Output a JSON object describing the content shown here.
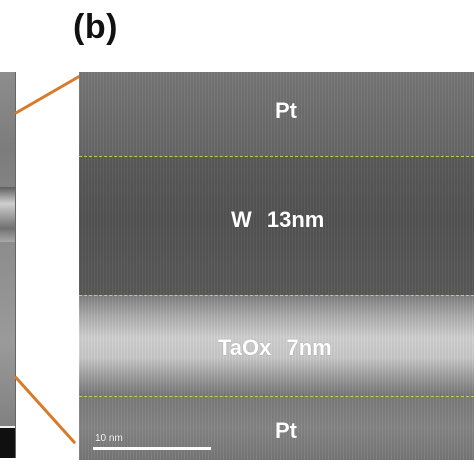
{
  "figure": {
    "panel_label": "(b)",
    "accent_color": "#d97a2b",
    "interface_line_color": "#d7d64b"
  },
  "micrograph": {
    "layers": {
      "top": "Pt",
      "middle_upper": "W  13nm",
      "middle_lower": "TaOx  7nm",
      "bottom": "Pt"
    },
    "scale_bar": {
      "label": "10 nm"
    }
  }
}
